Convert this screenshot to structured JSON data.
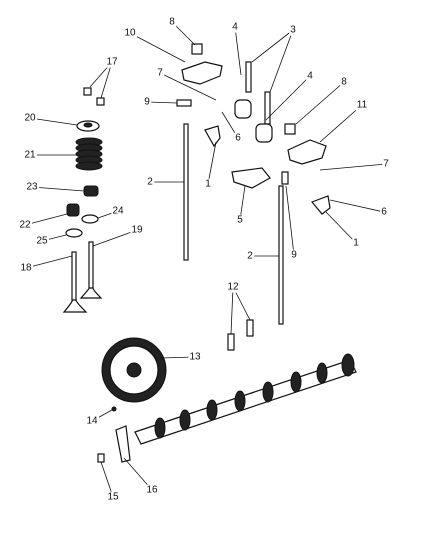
{
  "callouts": [
    "8",
    "10",
    "4",
    "3",
    "17",
    "7",
    "4",
    "8",
    "9",
    "6",
    "11",
    "20",
    "21",
    "2",
    "1",
    "7",
    "23",
    "5",
    "6",
    "22",
    "24",
    "1",
    "25",
    "19",
    "2",
    "9",
    "18",
    "12",
    "13",
    "14",
    "16",
    "15"
  ]
}
